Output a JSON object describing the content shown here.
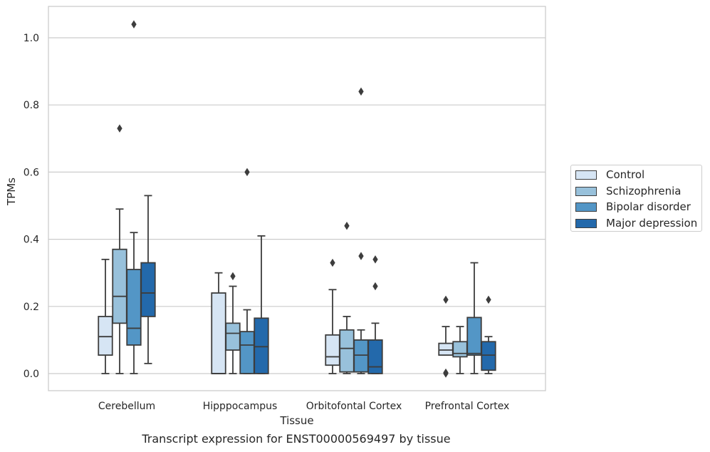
{
  "chart_data": {
    "type": "box",
    "title": "Transcript expression for ENST00000569497 by tissue",
    "xlabel": "Tissue",
    "ylabel": "TPMs",
    "ylim": [
      -0.05,
      1.09
    ],
    "yticks": [
      "0.0",
      "0.2",
      "0.4",
      "0.6",
      "0.8",
      "1.0"
    ],
    "ytick_values": [
      0.0,
      0.2,
      0.4,
      0.6,
      0.8,
      1.0
    ],
    "grid": true,
    "legend_position": "right",
    "categories": [
      "Cerebellum",
      "Hipppocampus",
      "Orbitofontal Cortex",
      "Prefrontal Cortex"
    ],
    "series": [
      {
        "name": "Control",
        "color": "#d6e5f4",
        "boxes": [
          {
            "whisker_low": 0.0,
            "q1": 0.055,
            "median": 0.11,
            "q3": 0.17,
            "whisker_high": 0.34,
            "outliers": []
          },
          {
            "whisker_low": 0.0,
            "q1": 0.0,
            "median": 0.0,
            "q3": 0.24,
            "whisker_high": 0.3,
            "outliers": []
          },
          {
            "whisker_low": 0.0,
            "q1": 0.025,
            "median": 0.05,
            "q3": 0.115,
            "whisker_high": 0.25,
            "outliers": [
              0.33
            ]
          },
          {
            "whisker_low": 0.055,
            "q1": 0.055,
            "median": 0.07,
            "q3": 0.09,
            "whisker_high": 0.14,
            "outliers": [
              0.22,
              0.0,
              0.003
            ]
          }
        ]
      },
      {
        "name": "Schizophrenia",
        "color": "#98c1db",
        "boxes": [
          {
            "whisker_low": 0.0,
            "q1": 0.15,
            "median": 0.23,
            "q3": 0.37,
            "whisker_high": 0.49,
            "outliers": [
              0.73
            ]
          },
          {
            "whisker_low": 0.0,
            "q1": 0.07,
            "median": 0.12,
            "q3": 0.15,
            "whisker_high": 0.26,
            "outliers": [
              0.29
            ]
          },
          {
            "whisker_low": 0.0,
            "q1": 0.005,
            "median": 0.075,
            "q3": 0.13,
            "whisker_high": 0.17,
            "outliers": [
              0.44
            ]
          },
          {
            "whisker_low": 0.0,
            "q1": 0.05,
            "median": 0.06,
            "q3": 0.095,
            "whisker_high": 0.14,
            "outliers": []
          }
        ]
      },
      {
        "name": "Bipolar disorder",
        "color": "#5396c6",
        "boxes": [
          {
            "whisker_low": 0.0,
            "q1": 0.085,
            "median": 0.135,
            "q3": 0.31,
            "whisker_high": 0.42,
            "outliers": [
              1.04
            ]
          },
          {
            "whisker_low": 0.0,
            "q1": 0.0,
            "median": 0.085,
            "q3": 0.125,
            "whisker_high": 0.19,
            "outliers": [
              0.6
            ]
          },
          {
            "whisker_low": 0.0,
            "q1": 0.005,
            "median": 0.055,
            "q3": 0.1,
            "whisker_high": 0.13,
            "outliers": [
              0.84,
              0.35
            ]
          },
          {
            "whisker_low": 0.0,
            "q1": 0.055,
            "median": 0.06,
            "q3": 0.167,
            "whisker_high": 0.33,
            "outliers": []
          }
        ]
      },
      {
        "name": "Major depression",
        "color": "#2369ab",
        "boxes": [
          {
            "whisker_low": 0.03,
            "q1": 0.17,
            "median": 0.24,
            "q3": 0.33,
            "whisker_high": 0.53,
            "outliers": []
          },
          {
            "whisker_low": 0.0,
            "q1": 0.0,
            "median": 0.08,
            "q3": 0.165,
            "whisker_high": 0.41,
            "outliers": []
          },
          {
            "whisker_low": 0.0,
            "q1": 0.0,
            "median": 0.02,
            "q3": 0.1,
            "whisker_high": 0.15,
            "outliers": [
              0.34,
              0.26
            ]
          },
          {
            "whisker_low": 0.0,
            "q1": 0.01,
            "median": 0.055,
            "q3": 0.095,
            "whisker_high": 0.11,
            "outliers": [
              0.22
            ]
          }
        ]
      }
    ]
  }
}
